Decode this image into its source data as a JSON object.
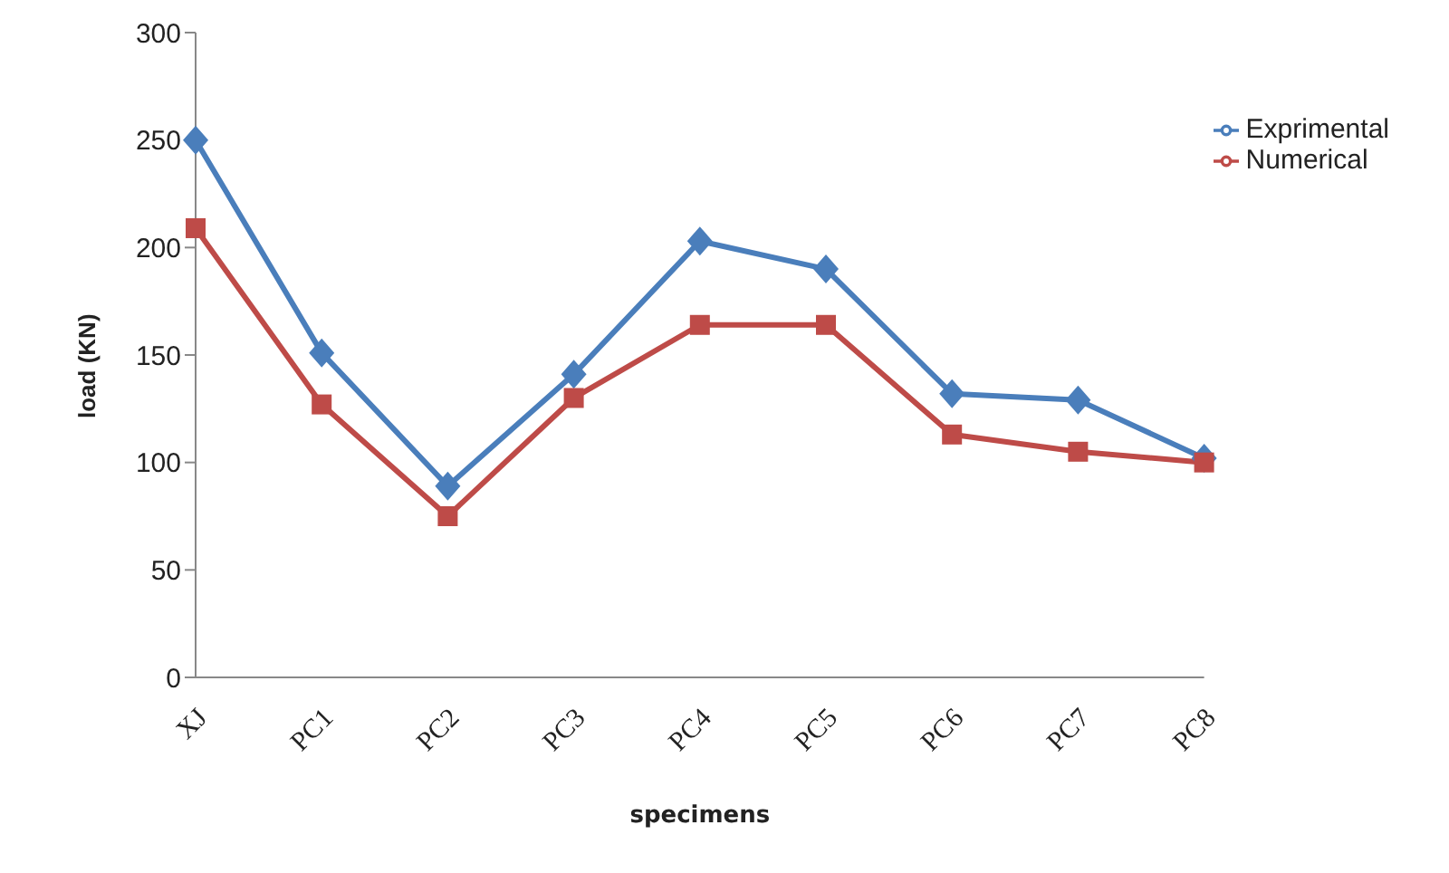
{
  "chart_data": {
    "type": "line",
    "xlabel": "specimens",
    "ylabel": "load (KN)",
    "categories": [
      "XJ",
      "PC1",
      "PC2",
      "PC3",
      "PC4",
      "PC5",
      "PC6",
      "PC7",
      "PC8"
    ],
    "series": [
      {
        "name": "Exprimental",
        "color": "#4a7ebb",
        "marker": "diamond",
        "values": [
          250,
          151,
          89,
          141,
          203,
          190,
          132,
          129,
          102
        ]
      },
      {
        "name": "Numerical",
        "color": "#be4b48",
        "marker": "square",
        "values": [
          209,
          127,
          75,
          130,
          164,
          164,
          113,
          105,
          100
        ]
      }
    ],
    "ylim": [
      0,
      300
    ],
    "yticks": [
      0,
      50,
      100,
      150,
      200,
      250,
      300
    ],
    "grid": false,
    "legend": "top right",
    "line_style": "solid"
  }
}
